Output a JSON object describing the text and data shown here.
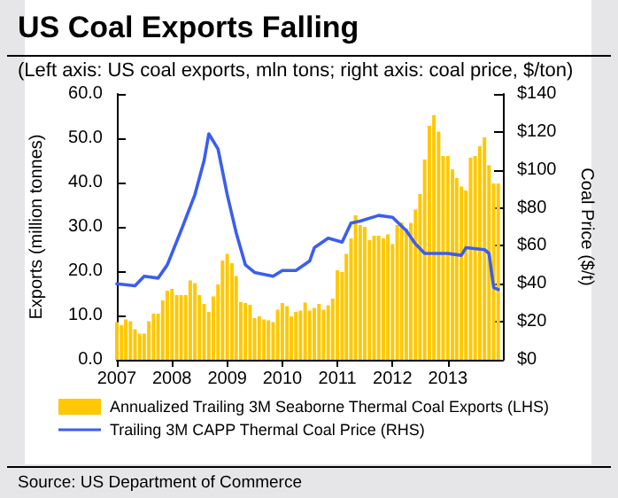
{
  "chart_data": {
    "type": "bar",
    "title": "US Coal Exports Falling",
    "subtitle": "(Left axis: US coal exports, mln tons; right axis: coal price, $/ton)",
    "ylabel": "Exports (million tonnes)",
    "y2label": "Coal Price ($/t)",
    "annotations": [
      "Source: US Department of Commerce"
    ],
    "x": [
      "2007-01",
      "2007-02",
      "2007-03",
      "2007-04",
      "2007-05",
      "2007-06",
      "2007-07",
      "2007-08",
      "2007-09",
      "2007-10",
      "2007-11",
      "2007-12",
      "2008-01",
      "2008-02",
      "2008-03",
      "2008-04",
      "2008-05",
      "2008-06",
      "2008-07",
      "2008-08",
      "2008-09",
      "2008-10",
      "2008-11",
      "2008-12",
      "2009-01",
      "2009-02",
      "2009-03",
      "2009-04",
      "2009-05",
      "2009-06",
      "2009-07",
      "2009-08",
      "2009-09",
      "2009-10",
      "2009-11",
      "2009-12",
      "2010-01",
      "2010-02",
      "2010-03",
      "2010-04",
      "2010-05",
      "2010-06",
      "2010-07",
      "2010-08",
      "2010-09",
      "2010-10",
      "2010-11",
      "2010-12",
      "2011-01",
      "2011-02",
      "2011-03",
      "2011-04",
      "2011-05",
      "2011-06",
      "2011-07",
      "2011-08",
      "2011-09",
      "2011-10",
      "2011-11",
      "2011-12",
      "2012-01",
      "2012-02",
      "2012-03",
      "2012-04",
      "2012-05",
      "2012-06",
      "2012-07",
      "2012-08",
      "2012-09",
      "2012-10",
      "2012-11",
      "2012-12",
      "2013-01",
      "2013-02",
      "2013-03",
      "2013-04",
      "2013-05",
      "2013-06",
      "2013-07",
      "2013-08",
      "2013-09",
      "2013-10",
      "2013-11",
      "2013-12"
    ],
    "series": [
      {
        "name": "Annualized Trailing 3M Seaborne Thermal Coal Exports (LHS)",
        "color": "#ffc800",
        "values": [
          8.5,
          7.8,
          9.1,
          8.7,
          6.9,
          5.9,
          5.9,
          8.7,
          10.4,
          10.4,
          13.4,
          15.6,
          16.0,
          14.6,
          14.6,
          14.6,
          17.9,
          17.3,
          14.6,
          12.6,
          10.8,
          14.3,
          17.0,
          22.4,
          23.9,
          21.8,
          18.9,
          13.0,
          12.8,
          12.4,
          9.4,
          9.8,
          9.1,
          8.9,
          8.5,
          11.3,
          12.8,
          12.1,
          9.8,
          10.8,
          11.1,
          12.9,
          11.1,
          11.7,
          12.6,
          11.3,
          12.3,
          13.8,
          20.2,
          19.8,
          23.9,
          27.4,
          32.6,
          30.4,
          30.0,
          27.0,
          28.0,
          28.0,
          27.4,
          28.3,
          26.1,
          30.4,
          31.0,
          29.6,
          30.9,
          33.9,
          37.4,
          45.2,
          52.8,
          55.2,
          51.5,
          46.0,
          46.0,
          43.0,
          41.0,
          39.1,
          38.2,
          45.6,
          46.0,
          48.2,
          50.2,
          43.9,
          39.8,
          39.8
        ]
      },
      {
        "name": "Trailing 3M CAPP Thermal Coal Price (RHS)",
        "type": "line",
        "axis": "y2",
        "color": "#3a5ef0",
        "x": [
          "2007-01",
          "2007-05",
          "2007-07",
          "2007-10",
          "2007-12",
          "2008-03",
          "2008-06",
          "2008-08",
          "2008-09",
          "2008-11",
          "2009-01",
          "2009-03",
          "2009-05",
          "2009-07",
          "2009-11",
          "2010-01",
          "2010-04",
          "2010-07",
          "2010-08",
          "2010-11",
          "2011-02",
          "2011-04",
          "2011-06",
          "2011-10",
          "2012-01",
          "2012-04",
          "2012-06",
          "2012-08",
          "2012-11",
          "2013-01",
          "2013-04",
          "2013-05",
          "2013-09",
          "2013-10",
          "2013-11",
          "2013-12"
        ],
        "values": [
          40,
          39,
          44,
          43,
          50,
          68,
          87,
          105,
          119,
          111,
          87,
          67,
          50,
          46,
          44,
          47,
          47,
          52,
          59,
          64,
          62,
          72,
          73,
          76,
          75,
          68,
          61,
          56,
          56,
          56,
          55,
          59,
          58,
          56,
          38,
          37
        ]
      }
    ],
    "xlim": [
      "2007",
      "2014"
    ],
    "xticks": [
      "2007",
      "2008",
      "2009",
      "2010",
      "2011",
      "2012",
      "2013"
    ],
    "ylim": [
      0,
      60
    ],
    "yticks": [
      {
        "value": 0,
        "label": "0.0"
      },
      {
        "value": 10,
        "label": "10.0"
      },
      {
        "value": 20,
        "label": "20.0"
      },
      {
        "value": 30,
        "label": "30.0"
      },
      {
        "value": 40,
        "label": "40.0"
      },
      {
        "value": 50,
        "label": "50.0"
      },
      {
        "value": 60,
        "label": "60.0"
      }
    ],
    "y2lim": [
      0,
      140
    ],
    "y2ticks": [
      {
        "value": 0,
        "label": "$0"
      },
      {
        "value": 20,
        "label": "$20"
      },
      {
        "value": 40,
        "label": "$40"
      },
      {
        "value": 60,
        "label": "$60"
      },
      {
        "value": 80,
        "label": "$80"
      },
      {
        "value": 100,
        "label": "$100"
      },
      {
        "value": 120,
        "label": "$120"
      },
      {
        "value": 140,
        "label": "$140"
      }
    ],
    "grid": false,
    "legend": "bottom",
    "line_style": "solid",
    "marker": "none"
  }
}
